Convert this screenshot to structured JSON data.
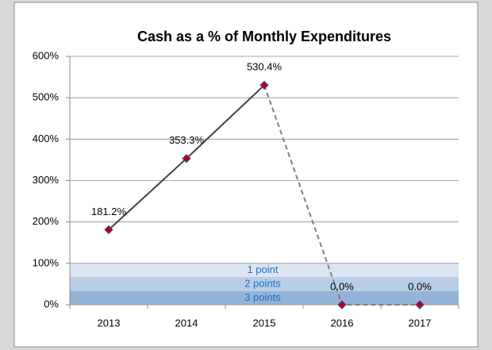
{
  "chart_data": {
    "type": "line",
    "title": "Cash as a % of Monthly Expenditures",
    "categories": [
      "2013",
      "2014",
      "2015",
      "2016",
      "2017"
    ],
    "series": [
      {
        "values": [
          181.2,
          353.3,
          530.4,
          0,
          0
        ],
        "value_labels": [
          "181.2%",
          "353.3%",
          "530.4%",
          "0.0%",
          "0.0%"
        ],
        "color": "#404040",
        "marker_color": "#c00000",
        "marker_edge": "#3050c0",
        "dashed_after": "2015"
      }
    ],
    "bands": [
      {
        "from": 67,
        "to": 100,
        "label": "1 point",
        "color": "#dce6f2"
      },
      {
        "from": 33,
        "to": 67,
        "label": "2 points",
        "color": "#b9cde5"
      },
      {
        "from": 0,
        "to": 33,
        "label": "3 points",
        "color": "#95b3d7"
      }
    ],
    "ylim": [
      0,
      600
    ],
    "yticks": [
      {
        "value": 0,
        "label": "0%"
      },
      {
        "value": 100,
        "label": "100%"
      },
      {
        "value": 200,
        "label": "200%"
      },
      {
        "value": 300,
        "label": "300%"
      },
      {
        "value": 400,
        "label": "400%"
      },
      {
        "value": 500,
        "label": "500%"
      },
      {
        "value": 600,
        "label": "600%"
      }
    ],
    "grid": true
  }
}
